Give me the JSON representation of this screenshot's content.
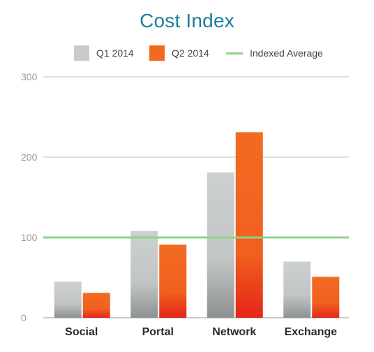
{
  "chart_data": {
    "type": "bar",
    "title": "Cost Index",
    "categories": [
      "Social",
      "Portal",
      "Network",
      "Exchange"
    ],
    "series": [
      {
        "name": "Q1 2014",
        "values": [
          45,
          108,
          181,
          70
        ],
        "color": "#c8cbcb"
      },
      {
        "name": "Q2 2014",
        "values": [
          31,
          91,
          231,
          51
        ],
        "color": "#f26a21"
      }
    ],
    "reference_line": {
      "name": "Indexed Average",
      "value": 100,
      "color": "#8fd18a"
    },
    "ylim": [
      0,
      300
    ],
    "yticks": [
      "0",
      "100",
      "200",
      "300"
    ],
    "grid": true,
    "legend_position": "top",
    "title_color": "#1a7f9c",
    "tick_color": "#9a9a9a",
    "category_label_color": "#2b2b2b"
  }
}
